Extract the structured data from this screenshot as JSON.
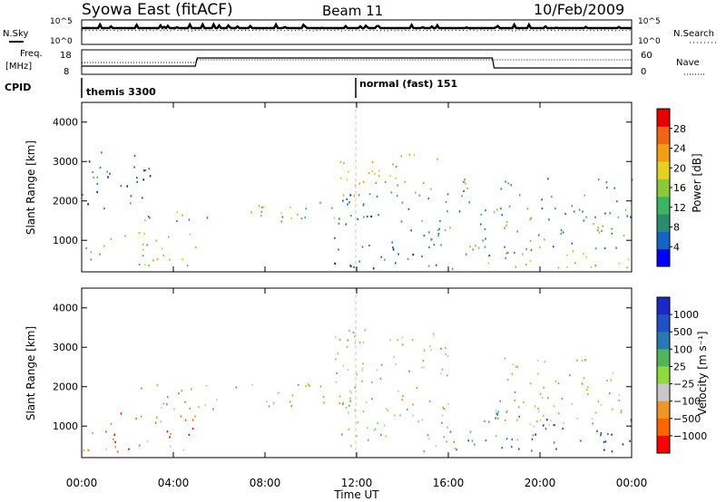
{
  "header": {
    "station": "Syowa East (fitACF)",
    "beam": "Beam 11",
    "date": "10/Feb/2009"
  },
  "nsky_panel": {
    "left_label": "N.Sky",
    "right_label": "N.Search",
    "ticks": [
      "10^5",
      "10^0"
    ]
  },
  "freq_panel": {
    "left_label_1": "Freq.",
    "left_label_2": "[MHz]",
    "right_label": "Nave",
    "left_ticks": [
      "18",
      "8"
    ],
    "right_ticks": [
      "60",
      "0"
    ]
  },
  "cpid": {
    "label": "CPID",
    "modes": [
      {
        "name": "themis 3300",
        "start_hour": 0
      },
      {
        "name": "normal (fast) 151",
        "start_hour": 12
      }
    ]
  },
  "colors": {
    "power": [
      "#0000ff",
      "#1464c8",
      "#2a8c6e",
      "#3cb464",
      "#8cc83c",
      "#e6d21e",
      "#f0a014",
      "#f06414",
      "#e60000"
    ],
    "velocity": [
      "#ff0000",
      "#ff6400",
      "#f09628",
      "#c8c8c8",
      "#8cdc3c",
      "#50b45a",
      "#2878b4",
      "#1e50c8",
      "#1e28c8"
    ],
    "grid": "#c8c8c8"
  },
  "chart_data": [
    {
      "type": "heatmap",
      "name": "power",
      "xlabel": "",
      "ylabel": "Slant Range [km]",
      "xlim": [
        0,
        24
      ],
      "ylim": [
        200,
        4500
      ],
      "yticks": [
        "1000",
        "2000",
        "3000",
        "4000"
      ],
      "colorbar": {
        "label": "Power [dB]",
        "range": [
          0,
          32
        ],
        "ticks": [
          "4",
          "8",
          "12",
          "16",
          "20",
          "24",
          "28"
        ]
      },
      "regions": [
        {
          "t0": 0.0,
          "t1": 5.0,
          "r0": 350,
          "r1": 1250,
          "level": 0.55
        },
        {
          "t0": 2.5,
          "t1": 12.0,
          "r0": 1500,
          "r1": 1750,
          "level": 0.45
        },
        {
          "t0": 7.0,
          "t1": 11.0,
          "r0": 1650,
          "r1": 2100,
          "level": 0.6
        },
        {
          "t0": 11.0,
          "t1": 15.5,
          "r0": 2000,
          "r1": 3200,
          "level": 0.55
        },
        {
          "t0": 11.0,
          "t1": 15.5,
          "r0": 300,
          "r1": 2200,
          "level": 0.25
        },
        {
          "t0": 15.5,
          "t1": 24.0,
          "r0": 300,
          "r1": 700,
          "level": 0.7
        },
        {
          "t0": 15.5,
          "t1": 24.0,
          "r0": 700,
          "r1": 2600,
          "level": 0.35
        },
        {
          "t0": 0.0,
          "t1": 3.0,
          "r0": 1800,
          "r1": 3300,
          "level": 0.2
        }
      ]
    },
    {
      "type": "heatmap",
      "name": "velocity",
      "xlabel": "Time UT",
      "ylabel": "Slant Range [km]",
      "xlim": [
        0,
        24
      ],
      "ylim": [
        200,
        4500
      ],
      "xticks": [
        "00:00",
        "04:00",
        "08:00",
        "12:00",
        "16:00",
        "20:00",
        "00:00"
      ],
      "yticks": [
        "1000",
        "2000",
        "3000",
        "4000"
      ],
      "colorbar": {
        "label": "Velocity [m s⁻¹]",
        "ticks": [
          "1000",
          "500",
          "100",
          "25",
          "−25",
          "−100",
          "−500",
          "−1000"
        ]
      },
      "regions": [
        {
          "t0": 0.0,
          "t1": 5.0,
          "r0": 350,
          "r1": 1350,
          "level": 0.2
        },
        {
          "t0": 2.5,
          "t1": 12.0,
          "r0": 1450,
          "r1": 2100,
          "level": 0.45
        },
        {
          "t0": 11.0,
          "t1": 16.0,
          "r0": 300,
          "r1": 3500,
          "level": 0.45
        },
        {
          "t0": 15.5,
          "t1": 19.5,
          "r0": 400,
          "r1": 1400,
          "level": 0.62
        },
        {
          "t0": 19.5,
          "t1": 24.0,
          "r0": 300,
          "r1": 1200,
          "level": 0.82
        },
        {
          "t0": 18.0,
          "t1": 24.0,
          "r0": 1000,
          "r1": 2800,
          "level": 0.45
        }
      ]
    }
  ]
}
